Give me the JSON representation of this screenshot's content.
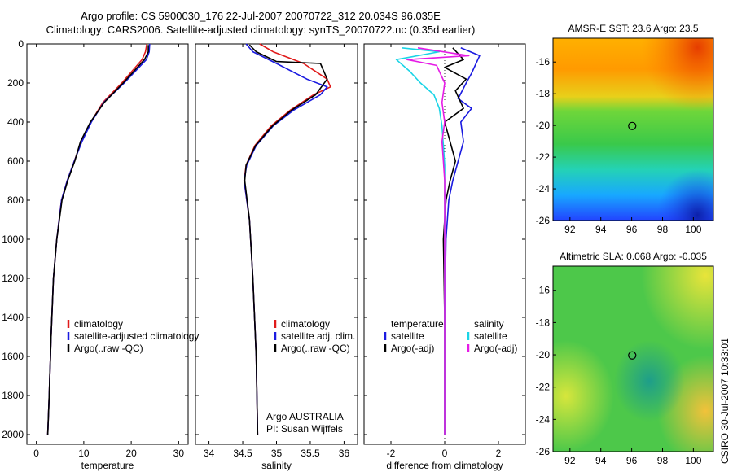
{
  "titles": {
    "line1": "Argo profile: CS 5900030_176 22-Jul-2007 20070722_312 20.034S 96.035E",
    "line2": "Climatology: CARS2006. Satellite-adjusted climatology: synTS_20070722.nc (0.35d earlier)"
  },
  "side_label": "CSIRO 30-Jul-2007 10:33:01",
  "colors": {
    "climatology": "#e01a1a",
    "satellite": "#1a1ae0",
    "argo": "#000000",
    "temp_sat_diff": "#1ad4e6",
    "temp_argo_diff": "#e61ae6"
  },
  "chart_data": [
    {
      "type": "line",
      "name": "temperature",
      "xlabel": "temperature",
      "ylabel": "",
      "xlim": [
        -2,
        32
      ],
      "ylim": [
        2050,
        0
      ],
      "xticks": [
        0,
        10,
        20,
        30
      ],
      "yticks": [
        0,
        200,
        400,
        600,
        800,
        1000,
        1200,
        1400,
        1600,
        1800,
        2000
      ],
      "legend": [
        "climatology",
        "satellite-adjusted climatology",
        "Argo(..raw -QC)"
      ],
      "series": [
        {
          "name": "climatology",
          "color": "#e01a1a",
          "x": [
            23.3,
            23.0,
            22.3,
            18.0,
            14.0,
            11.5,
            9.5,
            8.0,
            6.5,
            5.3,
            4.3,
            3.6,
            3.1,
            2.7,
            2.4
          ],
          "y": [
            0,
            40,
            80,
            200,
            300,
            400,
            500,
            600,
            700,
            800,
            1000,
            1200,
            1500,
            1800,
            2000
          ]
        },
        {
          "name": "satellite-adjusted climatology",
          "color": "#1a1ae0",
          "x": [
            23.9,
            23.8,
            23.2,
            18.5,
            14.2,
            11.6,
            9.6,
            8.0,
            6.5,
            5.3,
            4.3,
            3.6,
            3.1,
            2.7,
            2.4
          ],
          "y": [
            0,
            40,
            80,
            200,
            300,
            400,
            500,
            600,
            700,
            800,
            1000,
            1200,
            1500,
            1800,
            2000
          ]
        },
        {
          "name": "Argo(..raw -QC)",
          "color": "#000000",
          "x": [
            23.6,
            23.6,
            22.8,
            18.3,
            14.3,
            11.4,
            9.3,
            8.1,
            6.6,
            5.4,
            4.3,
            3.6,
            3.1,
            2.7,
            2.4
          ],
          "y": [
            5,
            40,
            80,
            200,
            300,
            400,
            500,
            600,
            700,
            800,
            1000,
            1200,
            1500,
            1800,
            2000
          ]
        }
      ]
    },
    {
      "type": "line",
      "name": "salinity",
      "xlabel": "salinity",
      "ylabel": "",
      "xlim": [
        33.8,
        36.2
      ],
      "ylim": [
        2050,
        0
      ],
      "xticks": [
        34,
        34.5,
        35,
        35.5,
        36
      ],
      "legend": [
        "climatology",
        "satellite adj. clim.",
        "Argo(..raw -QC)"
      ],
      "annotation": [
        "Argo AUSTRALIA",
        "PI: Susan Wijffels"
      ],
      "series": [
        {
          "name": "climatology",
          "color": "#e01a1a",
          "x": [
            34.75,
            34.95,
            35.4,
            35.75,
            35.8,
            35.55,
            35.2,
            34.92,
            34.68,
            34.55,
            34.52,
            34.6,
            34.65,
            34.7,
            34.72
          ],
          "y": [
            0,
            40,
            100,
            180,
            220,
            260,
            340,
            420,
            520,
            620,
            700,
            900,
            1200,
            1600,
            2000
          ]
        },
        {
          "name": "satellite adj. clim.",
          "color": "#1a1ae0",
          "x": [
            34.55,
            34.65,
            35.0,
            35.45,
            35.75,
            35.65,
            35.25,
            34.95,
            34.7,
            34.56,
            34.52,
            34.6,
            34.65,
            34.7,
            34.72
          ],
          "y": [
            0,
            40,
            100,
            180,
            220,
            260,
            340,
            420,
            520,
            620,
            700,
            900,
            1200,
            1600,
            2000
          ]
        },
        {
          "name": "Argo(..raw -QC)",
          "color": "#000000",
          "x": [
            34.6,
            34.7,
            35.0,
            35.65,
            35.75,
            35.58,
            35.22,
            34.94,
            34.69,
            34.55,
            34.53,
            34.6,
            34.65,
            34.7,
            34.72
          ],
          "y": [
            5,
            40,
            90,
            100,
            180,
            260,
            340,
            420,
            520,
            620,
            700,
            900,
            1200,
            1600,
            2000
          ]
        }
      ]
    },
    {
      "type": "line",
      "name": "difference from climatology",
      "xlabel": "difference from climatology",
      "ylabel": "",
      "xlim": [
        -3,
        3
      ],
      "ylim": [
        2050,
        0
      ],
      "xticks": [
        -2,
        0,
        2
      ],
      "legend": [
        "temperature",
        "satellite",
        "Argo(-adj)",
        "salinity",
        "satellite",
        "Argo(-adj)"
      ],
      "series": [
        {
          "name": "temperature satellite",
          "color": "#1a1ae0",
          "x": [
            0.6,
            1.3,
            1.0,
            0.8,
            0.5,
            1.0,
            0.6,
            0.7,
            0.5,
            0.3,
            0.15,
            0.05,
            0.0,
            0.0,
            0.0
          ],
          "y": [
            20,
            60,
            150,
            200,
            280,
            330,
            400,
            500,
            600,
            700,
            800,
            1000,
            1400,
            1800,
            2000
          ]
        },
        {
          "name": "temperature Argo(-adj)",
          "color": "#000000",
          "x": [
            0.3,
            0.7,
            0.0,
            0.8,
            0.4,
            0.7,
            0.0,
            0.2,
            0.4,
            0.2,
            0.05,
            -0.05,
            0.0,
            0.0,
            0.0
          ],
          "y": [
            20,
            80,
            120,
            180,
            240,
            330,
            400,
            500,
            600,
            700,
            800,
            1000,
            1400,
            1800,
            2000
          ]
        },
        {
          "name": "salinity satellite",
          "color": "#1ad4e6",
          "x": [
            -1.6,
            -0.2,
            -1.8,
            -1.3,
            -0.9,
            -0.4,
            -0.2,
            -0.1,
            -0.05,
            0.0,
            0.0,
            0.0,
            0.0,
            0.0,
            0.0
          ],
          "y": [
            20,
            40,
            80,
            140,
            200,
            260,
            330,
            420,
            520,
            620,
            720,
            900,
            1200,
            1600,
            2000
          ]
        },
        {
          "name": "salinity Argo(-adj)",
          "color": "#e61ae6",
          "x": [
            -1.0,
            0.9,
            -1.4,
            -0.3,
            0.0,
            -0.1,
            0.0,
            -0.1,
            -0.05,
            0.0,
            0.0,
            0.0,
            0.0,
            0.0,
            0.0
          ],
          "y": [
            20,
            60,
            80,
            110,
            200,
            300,
            400,
            500,
            600,
            700,
            800,
            1000,
            1400,
            1800,
            2000
          ]
        }
      ]
    },
    {
      "type": "heatmap",
      "name": "sst-map",
      "title": "AMSR-E SST: 23.6  Argo: 23.5",
      "xlim": [
        90.9,
        101.3
      ],
      "ylim": [
        -26,
        -14.5
      ],
      "xticks": [
        92,
        94,
        96,
        98,
        100
      ],
      "yticks": [
        -16,
        -18,
        -20,
        -22,
        -24,
        -26
      ],
      "marker": {
        "lon": 96.035,
        "lat": -20.034
      }
    },
    {
      "type": "heatmap",
      "name": "sla-map",
      "title": "Altimetric SLA: 0.068  Argo: -0.035",
      "xlim": [
        90.9,
        101.3
      ],
      "ylim": [
        -26,
        -14.5
      ],
      "xticks": [
        92,
        94,
        96,
        98,
        100
      ],
      "yticks": [
        -16,
        -18,
        -20,
        -22,
        -24,
        -26
      ],
      "marker": {
        "lon": 96.035,
        "lat": -20.034
      }
    }
  ]
}
